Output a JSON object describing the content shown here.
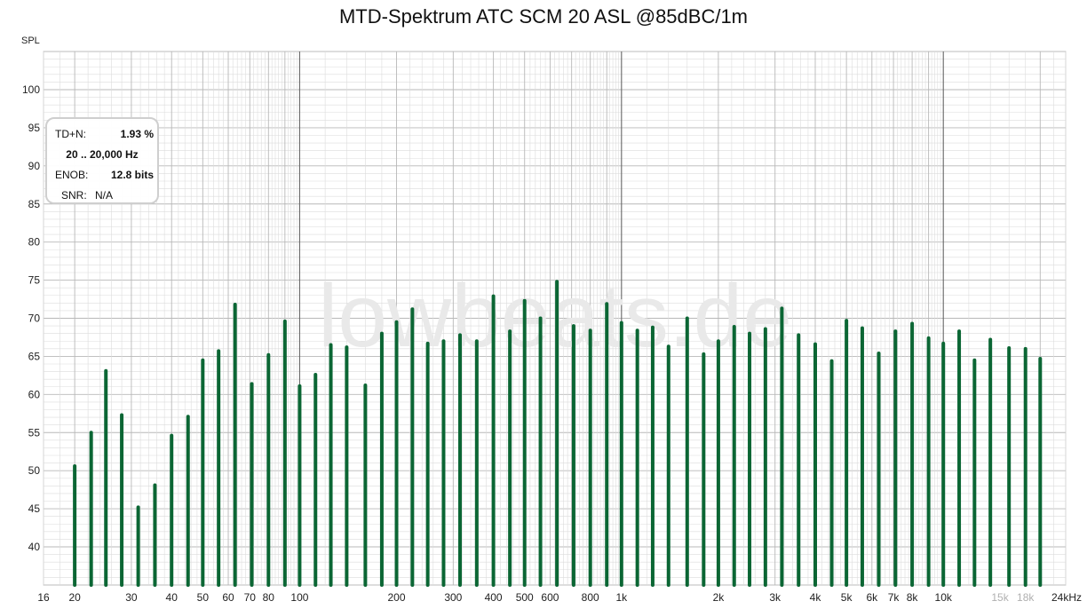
{
  "chart_data": {
    "type": "bar",
    "title": "MTD-Spektrum ATC SCM 20 ASL @85dBC/1m",
    "ylabel": "SPL",
    "xlabel": "",
    "x_scale": "log",
    "xlim": [
      16,
      24000
    ],
    "ylim": [
      35,
      105
    ],
    "y_ticks": [
      40,
      45,
      50,
      55,
      60,
      65,
      70,
      75,
      80,
      85,
      90,
      95,
      100
    ],
    "x_ticks": [
      {
        "value": 16,
        "label": "16"
      },
      {
        "value": 20,
        "label": "20"
      },
      {
        "value": 30,
        "label": "30"
      },
      {
        "value": 40,
        "label": "40"
      },
      {
        "value": 50,
        "label": "50"
      },
      {
        "value": 60,
        "label": "60"
      },
      {
        "value": 70,
        "label": "70"
      },
      {
        "value": 80,
        "label": "80"
      },
      {
        "value": 100,
        "label": "100"
      },
      {
        "value": 200,
        "label": "200"
      },
      {
        "value": 300,
        "label": "300"
      },
      {
        "value": 400,
        "label": "400"
      },
      {
        "value": 500,
        "label": "500"
      },
      {
        "value": 600,
        "label": "600"
      },
      {
        "value": 800,
        "label": "800"
      },
      {
        "value": 1000,
        "label": "1k"
      },
      {
        "value": 2000,
        "label": "2k"
      },
      {
        "value": 3000,
        "label": "3k"
      },
      {
        "value": 4000,
        "label": "4k"
      },
      {
        "value": 5000,
        "label": "5k"
      },
      {
        "value": 6000,
        "label": "6k"
      },
      {
        "value": 7000,
        "label": "7k"
      },
      {
        "value": 8000,
        "label": "8k"
      },
      {
        "value": 10000,
        "label": "10k"
      },
      {
        "value": 15000,
        "label": "15k",
        "muted": true
      },
      {
        "value": 18000,
        "label": "18k",
        "muted": true
      },
      {
        "value": 24000,
        "label": "24kHz"
      }
    ],
    "grid": true,
    "series": [
      {
        "color": "#0b6634",
        "points": [
          {
            "x": 20,
            "y": 50.6
          },
          {
            "x": 22.5,
            "y": 55.0
          },
          {
            "x": 25,
            "y": 63.1
          },
          {
            "x": 28,
            "y": 57.3
          },
          {
            "x": 31.5,
            "y": 45.2
          },
          {
            "x": 35.5,
            "y": 48.1
          },
          {
            "x": 40,
            "y": 54.6
          },
          {
            "x": 45,
            "y": 57.1
          },
          {
            "x": 50,
            "y": 64.5
          },
          {
            "x": 56,
            "y": 65.7
          },
          {
            "x": 63,
            "y": 71.8
          },
          {
            "x": 71,
            "y": 61.4
          },
          {
            "x": 80,
            "y": 65.2
          },
          {
            "x": 90,
            "y": 69.6
          },
          {
            "x": 100,
            "y": 61.1
          },
          {
            "x": 112,
            "y": 62.6
          },
          {
            "x": 125,
            "y": 66.5
          },
          {
            "x": 140,
            "y": 66.2
          },
          {
            "x": 160,
            "y": 61.2
          },
          {
            "x": 180,
            "y": 68.0
          },
          {
            "x": 200,
            "y": 69.5
          },
          {
            "x": 224,
            "y": 71.2
          },
          {
            "x": 250,
            "y": 66.7
          },
          {
            "x": 280,
            "y": 67.0
          },
          {
            "x": 315,
            "y": 67.8
          },
          {
            "x": 355,
            "y": 67.0
          },
          {
            "x": 400,
            "y": 72.9
          },
          {
            "x": 450,
            "y": 68.3
          },
          {
            "x": 500,
            "y": 72.3
          },
          {
            "x": 560,
            "y": 70.0
          },
          {
            "x": 630,
            "y": 74.8
          },
          {
            "x": 710,
            "y": 69.0
          },
          {
            "x": 800,
            "y": 68.4
          },
          {
            "x": 900,
            "y": 71.9
          },
          {
            "x": 1000,
            "y": 69.4
          },
          {
            "x": 1120,
            "y": 68.4
          },
          {
            "x": 1250,
            "y": 68.8
          },
          {
            "x": 1400,
            "y": 66.3
          },
          {
            "x": 1600,
            "y": 70.0
          },
          {
            "x": 1800,
            "y": 65.3
          },
          {
            "x": 2000,
            "y": 67.0
          },
          {
            "x": 2240,
            "y": 68.9
          },
          {
            "x": 2500,
            "y": 68.0
          },
          {
            "x": 2800,
            "y": 68.6
          },
          {
            "x": 3150,
            "y": 71.3
          },
          {
            "x": 3550,
            "y": 67.8
          },
          {
            "x": 4000,
            "y": 66.6
          },
          {
            "x": 4500,
            "y": 64.4
          },
          {
            "x": 5000,
            "y": 69.7
          },
          {
            "x": 5600,
            "y": 68.7
          },
          {
            "x": 6300,
            "y": 65.4
          },
          {
            "x": 7100,
            "y": 68.3
          },
          {
            "x": 8000,
            "y": 69.3
          },
          {
            "x": 9000,
            "y": 67.4
          },
          {
            "x": 10000,
            "y": 66.7
          },
          {
            "x": 11200,
            "y": 68.3
          },
          {
            "x": 12500,
            "y": 64.5
          },
          {
            "x": 14000,
            "y": 67.2
          },
          {
            "x": 16000,
            "y": 66.1
          },
          {
            "x": 18000,
            "y": 66.0
          },
          {
            "x": 20000,
            "y": 64.7
          }
        ]
      }
    ]
  },
  "info_box": {
    "row1_key": "TD+N:",
    "row1_val": "1.93 %",
    "row2": "20 .. 20,000 Hz",
    "row3_key": "ENOB:",
    "row3_val": "12.8 bits",
    "row4_key": "SNR:",
    "row4_val": "N/A"
  },
  "watermark": "lowbeats.de",
  "colors": {
    "bar": "#0b6634",
    "grid_minor": "#dcdcdc",
    "grid_major": "#b8b8b8",
    "decade": "#666666",
    "watermark": "#e9e9e9"
  }
}
